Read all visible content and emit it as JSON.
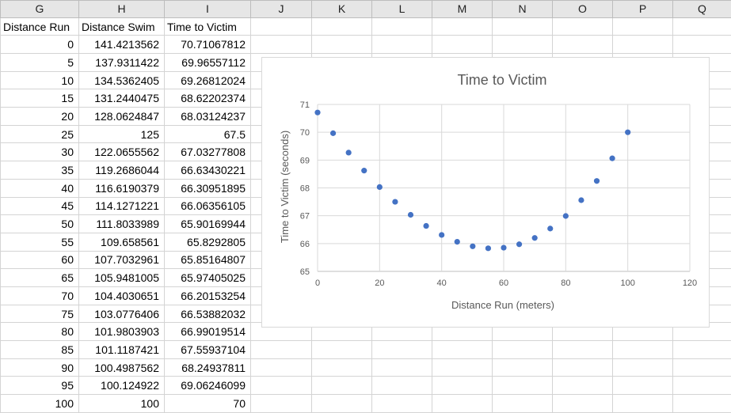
{
  "columns": [
    "G",
    "H",
    "I",
    "J",
    "K",
    "L",
    "M",
    "N",
    "O",
    "P",
    "Q"
  ],
  "table": {
    "headers": [
      "Distance Run",
      "Distance Swim",
      "Time to Victim"
    ],
    "rows": [
      [
        "0",
        "141.4213562",
        "70.71067812"
      ],
      [
        "5",
        "137.9311422",
        "69.96557112"
      ],
      [
        "10",
        "134.5362405",
        "69.26812024"
      ],
      [
        "15",
        "131.2440475",
        "68.62202374"
      ],
      [
        "20",
        "128.0624847",
        "68.03124237"
      ],
      [
        "25",
        "125",
        "67.5"
      ],
      [
        "30",
        "122.0655562",
        "67.03277808"
      ],
      [
        "35",
        "119.2686044",
        "66.63430221"
      ],
      [
        "40",
        "116.6190379",
        "66.30951895"
      ],
      [
        "45",
        "114.1271221",
        "66.06356105"
      ],
      [
        "50",
        "111.8033989",
        "65.90169944"
      ],
      [
        "55",
        "109.658561",
        "65.8292805"
      ],
      [
        "60",
        "107.7032961",
        "65.85164807"
      ],
      [
        "65",
        "105.9481005",
        "65.97405025"
      ],
      [
        "70",
        "104.4030651",
        "66.20153254"
      ],
      [
        "75",
        "103.0776406",
        "66.53882032"
      ],
      [
        "80",
        "101.9803903",
        "66.99019514"
      ],
      [
        "85",
        "101.1187421",
        "67.55937104"
      ],
      [
        "90",
        "100.4987562",
        "68.24937811"
      ],
      [
        "95",
        "100.124922",
        "69.06246099"
      ],
      [
        "100",
        "100",
        "70"
      ]
    ]
  },
  "chart_data": {
    "type": "scatter",
    "title": "Time to Victim",
    "xlabel": "Distance Run (meters)",
    "ylabel": "Time to Victim (seconds)",
    "xlim": [
      0,
      120
    ],
    "ylim": [
      65,
      71
    ],
    "x_ticks": [
      0,
      20,
      40,
      60,
      80,
      100,
      120
    ],
    "y_ticks": [
      65,
      66,
      67,
      68,
      69,
      70,
      71
    ],
    "grid": true,
    "legend": "none",
    "marker_color": "#4472c4",
    "x": [
      0,
      5,
      10,
      15,
      20,
      25,
      30,
      35,
      40,
      45,
      50,
      55,
      60,
      65,
      70,
      75,
      80,
      85,
      90,
      95,
      100
    ],
    "y": [
      70.71067812,
      69.96557112,
      69.26812024,
      68.62202374,
      68.03124237,
      67.5,
      67.03277808,
      66.63430221,
      66.30951895,
      66.06356105,
      65.90169944,
      65.8292805,
      65.85164807,
      65.97405025,
      66.20153254,
      66.53882032,
      66.99019514,
      67.55937104,
      68.24937811,
      69.06246099,
      70
    ]
  }
}
